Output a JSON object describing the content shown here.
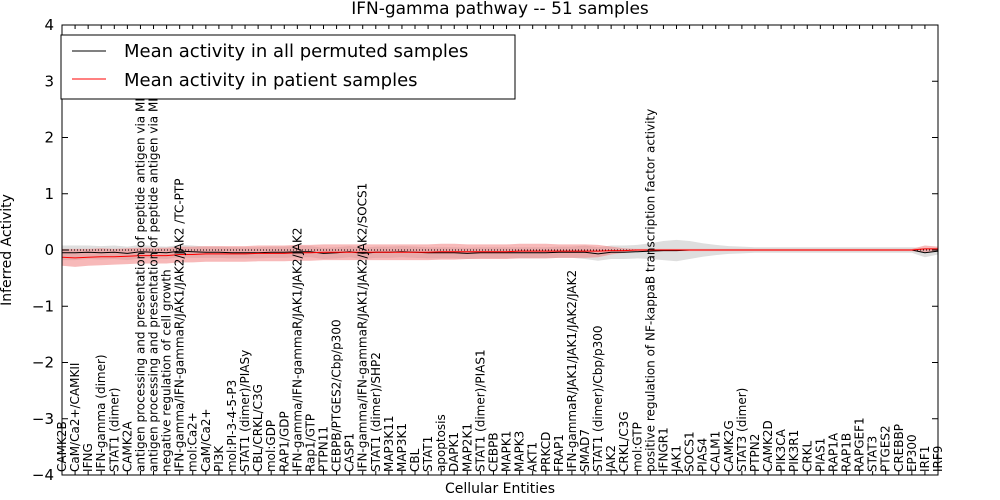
{
  "chart_data": {
    "type": "line",
    "title": "IFN-gamma pathway -- 51 samples",
    "xlabel": "Cellular Entities",
    "ylabel": "Inferred Activity",
    "ylim": [
      -4,
      4
    ],
    "yticks": [
      "4",
      "3",
      "2",
      "1",
      "0",
      "−1",
      "−2",
      "−3",
      "−4"
    ],
    "ytick_values": [
      4,
      3,
      2,
      1,
      0,
      -1,
      -2,
      -3,
      -4
    ],
    "reference_line": 0,
    "legend": {
      "position": "top-left",
      "entries": [
        {
          "label": "Mean activity in all permuted samples",
          "color": "#000000"
        },
        {
          "label": "Mean activity in patient samples",
          "color": "#ff0000"
        }
      ]
    },
    "categories": [
      "CAMK2B",
      "CaM/Ca2+/CAMKII",
      "IFNG",
      "IFN-gamma (dimer)",
      "STAT1 (dimer)",
      "CAMK2A",
      "antigen processing and presentation of peptide antigen via MHC class I",
      "antigen processing and presentation of peptide antigen via MHC class II",
      "negative regulation of cell growth",
      "IFN-gamma/IFN-gammaR/JAK1/JAK2/JAK2 /TC-PTP",
      "mol:Ca2+",
      "CaM/Ca2+",
      "PI3K",
      "mol:PI-3-4-5-P3",
      "STAT1 (dimer)/PIASy",
      "CBL/CRKL/C3G",
      "mol:GDP",
      "RAP1/GDP",
      "IFN-gamma/IFN-gammaR/JAK1/JAK2/JAK2",
      "Rap1/GTP",
      "PTPN11",
      "CEBPB/PTGES2/Cbp/p300",
      "CASP1",
      "IFN-gamma/IFN-gammaR/JAK1/JAK2/JAK2/SOCS1",
      "STAT1 (dimer)/SHP2",
      "MAP3K11",
      "MAP3K1",
      "CBL",
      "STAT1",
      "apoptosis",
      "DAPK1",
      "MAP2K1",
      "STAT1 (dimer)/PIAS1",
      "CEBPB",
      "MAPK1",
      "MAPK3",
      "AKT1",
      "PRKCD",
      "FRAP1",
      "IFN-gammaR/JAK1/JAK1/JAK2/JAK2",
      "SMAD7",
      "STAT1 (dimer)/Cbp/p300",
      "JAK2",
      "CRKL/C3G",
      "mol:GTP",
      "positive regulation of NF-kappaB transcription factor activity",
      "IFNGR1",
      "JAK1",
      "SOCS1",
      "PIAS4",
      "CALM1",
      "CAMK2G",
      "STAT3 (dimer)",
      "PTPN2",
      "CAMK2D",
      "PIK3CA",
      "PIK3R1",
      "CRKL",
      "PIAS1",
      "RAP1A",
      "RAP1B",
      "RAPGEF1",
      "STAT3",
      "PTGES2",
      "CREBBP",
      "EP300",
      "IRF1",
      "IRF9"
    ],
    "series": [
      {
        "name": "Mean activity in all permuted samples",
        "color": "#000000",
        "band_color": "#c8c8c8",
        "values": [
          -0.05,
          -0.05,
          -0.04,
          -0.05,
          -0.04,
          -0.06,
          -0.03,
          -0.04,
          -0.05,
          -0.02,
          -0.03,
          -0.04,
          -0.04,
          -0.05,
          -0.05,
          -0.05,
          -0.04,
          -0.04,
          -0.03,
          -0.03,
          -0.06,
          -0.05,
          -0.03,
          -0.06,
          -0.04,
          -0.04,
          -0.03,
          -0.04,
          -0.05,
          -0.05,
          -0.05,
          -0.06,
          -0.05,
          -0.05,
          -0.05,
          -0.05,
          -0.05,
          -0.05,
          -0.04,
          -0.04,
          -0.04,
          -0.07,
          -0.04,
          -0.04,
          -0.03,
          -0.02,
          -0.01,
          -0.01,
          0.0,
          0.0,
          0.0,
          0.0,
          0.0,
          0.0,
          0.0,
          0.0,
          0.0,
          0.0,
          0.0,
          0.0,
          0.0,
          0.0,
          0.0,
          0.0,
          0.0,
          0.0,
          -0.05,
          -0.02
        ],
        "band": [
          0.13,
          0.13,
          0.12,
          0.12,
          0.12,
          0.12,
          0.12,
          0.11,
          0.11,
          0.11,
          0.11,
          0.1,
          0.1,
          0.1,
          0.1,
          0.1,
          0.1,
          0.1,
          0.1,
          0.1,
          0.1,
          0.1,
          0.1,
          0.1,
          0.1,
          0.1,
          0.1,
          0.1,
          0.1,
          0.1,
          0.1,
          0.1,
          0.1,
          0.1,
          0.1,
          0.1,
          0.1,
          0.1,
          0.1,
          0.1,
          0.12,
          0.12,
          0.12,
          0.12,
          0.12,
          0.14,
          0.17,
          0.19,
          0.16,
          0.12,
          0.09,
          0.07,
          0.06,
          0.05,
          0.05,
          0.05,
          0.05,
          0.05,
          0.05,
          0.05,
          0.05,
          0.05,
          0.05,
          0.05,
          0.05,
          0.05,
          0.08,
          0.06
        ]
      },
      {
        "name": "Mean activity in patient samples",
        "color": "#ff0000",
        "band_color": "#f08080",
        "values": [
          -0.13,
          -0.14,
          -0.13,
          -0.12,
          -0.12,
          -0.11,
          -0.1,
          -0.1,
          -0.1,
          -0.08,
          -0.08,
          -0.07,
          -0.07,
          -0.07,
          -0.07,
          -0.06,
          -0.06,
          -0.06,
          -0.05,
          -0.05,
          -0.04,
          -0.04,
          -0.04,
          -0.04,
          -0.04,
          -0.04,
          -0.04,
          -0.04,
          -0.04,
          -0.03,
          -0.03,
          -0.03,
          -0.03,
          -0.03,
          -0.03,
          -0.02,
          -0.02,
          -0.02,
          -0.02,
          -0.02,
          -0.02,
          -0.02,
          -0.01,
          -0.01,
          0.0,
          0.0,
          0.0,
          0.0,
          0.0,
          0.0,
          0.0,
          0.0,
          0.0,
          0.0,
          0.0,
          0.0,
          0.0,
          0.0,
          0.0,
          0.0,
          0.0,
          0.0,
          0.0,
          0.0,
          0.0,
          0.0,
          0.02,
          0.02
        ],
        "band": [
          0.15,
          0.16,
          0.15,
          0.15,
          0.14,
          0.14,
          0.14,
          0.14,
          0.14,
          0.14,
          0.14,
          0.14,
          0.14,
          0.14,
          0.14,
          0.14,
          0.14,
          0.14,
          0.14,
          0.14,
          0.14,
          0.14,
          0.14,
          0.14,
          0.14,
          0.14,
          0.14,
          0.14,
          0.14,
          0.14,
          0.14,
          0.13,
          0.13,
          0.13,
          0.13,
          0.13,
          0.13,
          0.13,
          0.12,
          0.12,
          0.12,
          0.11,
          0.07,
          0.04,
          0.02,
          0.02,
          0.02,
          0.02,
          0.02,
          0.02,
          0.02,
          0.02,
          0.02,
          0.02,
          0.02,
          0.02,
          0.02,
          0.02,
          0.02,
          0.02,
          0.02,
          0.02,
          0.02,
          0.02,
          0.02,
          0.02,
          0.06,
          0.04
        ]
      }
    ]
  }
}
